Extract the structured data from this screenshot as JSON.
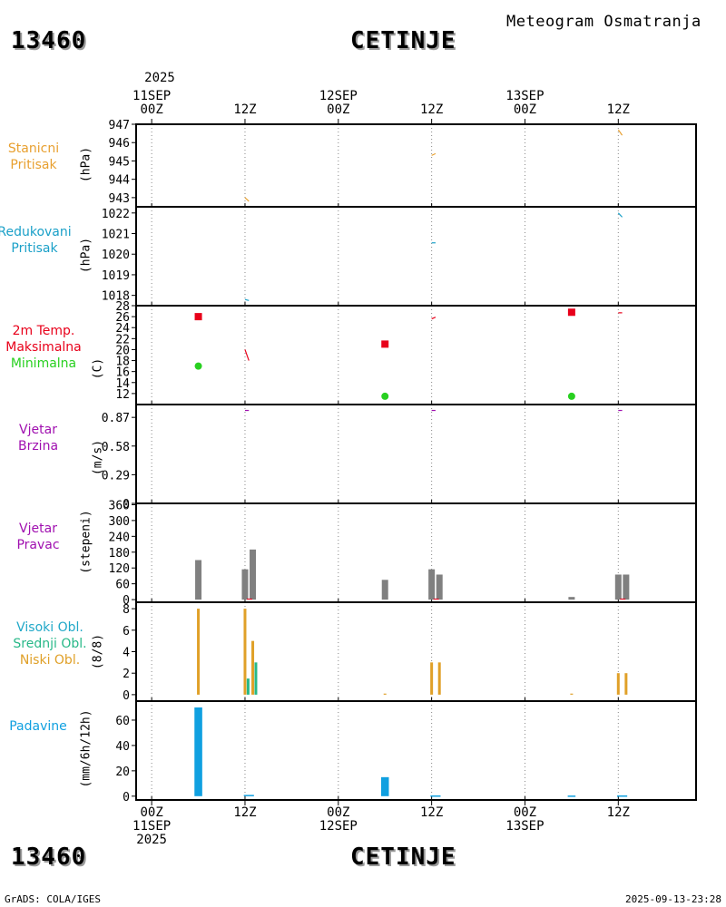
{
  "header": {
    "station_id": "13460",
    "station_name": "CETINJE",
    "chart_title": "Meteogram Osmatranja"
  },
  "footer": {
    "credit": "GrADS: COLA/IGES",
    "timestamp": "2025-09-13-23:28"
  },
  "colors": {
    "pressure_station": "#e8a030",
    "pressure_reduced": "#1aa0c8",
    "temp_max": "#e8001a",
    "temp_min": "#28d020",
    "wind": "#a010b0",
    "wind_dir_bar": "#808080",
    "cloud_high": "#20a8c8",
    "cloud_mid": "#28b888",
    "cloud_low": "#e0a028",
    "precip": "#10a0e0"
  },
  "time_axis": {
    "top": {
      "year": "2025",
      "ticks": [
        {
          "x": 0,
          "lines": [
            "11SEP",
            "00Z"
          ]
        },
        {
          "x": 12,
          "lines": [
            "12Z"
          ]
        },
        {
          "x": 24,
          "lines": [
            "12SEP",
            "00Z"
          ]
        },
        {
          "x": 36,
          "lines": [
            "12Z"
          ]
        },
        {
          "x": 48,
          "lines": [
            "13SEP",
            "00Z"
          ]
        },
        {
          "x": 60,
          "lines": [
            "12Z"
          ]
        }
      ]
    },
    "bottom": {
      "ticks": [
        {
          "x": 0,
          "lines": [
            "00Z",
            "11SEP",
            "2025"
          ]
        },
        {
          "x": 12,
          "lines": [
            "12Z"
          ]
        },
        {
          "x": 24,
          "lines": [
            "00Z",
            "12SEP"
          ]
        },
        {
          "x": 36,
          "lines": [
            "12Z"
          ]
        },
        {
          "x": 48,
          "lines": [
            "00Z",
            "13SEP"
          ]
        },
        {
          "x": 60,
          "lines": [
            "12Z"
          ]
        }
      ]
    }
  },
  "panel_labels": {
    "station_pressure": [
      "Stanicni",
      "Pritisak"
    ],
    "reduced_pressure": [
      "Redukovani",
      "Pritisak"
    ],
    "temperature": [
      "2m Temp.",
      "Maksimalna",
      "Minimalna"
    ],
    "wind_speed": [
      "Vjetar",
      "Brzina"
    ],
    "wind_direction": [
      "Vjetar",
      "Pravac"
    ],
    "clouds": [
      "Visoki Obl.",
      "Srednji Obl.",
      "Niski Obl."
    ],
    "precipitation": [
      "Padavine"
    ]
  },
  "chart_data": [
    {
      "id": "station_pressure",
      "type": "line",
      "ylabel": "(hPa)",
      "ylim": [
        942.5,
        947
      ],
      "yticks": [
        "943",
        "944",
        "945",
        "946",
        "947"
      ],
      "ytick_values": [
        943,
        944,
        945,
        946,
        947
      ],
      "segments": [
        {
          "x": [
            12,
            12.5
          ],
          "y": [
            943.0,
            942.8
          ]
        },
        {
          "x": [
            36,
            36.5
          ],
          "y": [
            945.3,
            945.4
          ]
        },
        {
          "x": [
            60,
            60.5
          ],
          "y": [
            946.7,
            946.4
          ]
        }
      ]
    },
    {
      "id": "reduced_pressure",
      "type": "line",
      "ylabel": "(hPa)",
      "ylim": [
        1017.5,
        1022.3
      ],
      "yticks": [
        "1018",
        "1019",
        "1020",
        "1021",
        "1022"
      ],
      "ytick_values": [
        1018,
        1019,
        1020,
        1021,
        1022
      ],
      "segments": [
        {
          "x": [
            12,
            12.5
          ],
          "y": [
            1017.8,
            1017.75
          ]
        },
        {
          "x": [
            36,
            36.5
          ],
          "y": [
            1020.55,
            1020.55
          ]
        },
        {
          "x": [
            60,
            60.5
          ],
          "y": [
            1022.0,
            1021.8
          ]
        }
      ]
    },
    {
      "id": "temperature",
      "type": "scatter",
      "ylabel": "(C)",
      "ylim": [
        10,
        28
      ],
      "yticks": [
        "12",
        "14",
        "16",
        "18",
        "20",
        "22",
        "24",
        "26",
        "28"
      ],
      "ytick_values": [
        12,
        14,
        16,
        18,
        20,
        22,
        24,
        26,
        28
      ],
      "max_points": [
        {
          "x": 6,
          "y": 26.0
        },
        {
          "x": 30,
          "y": 21.0
        },
        {
          "x": 54,
          "y": 26.8
        }
      ],
      "min_points": [
        {
          "x": 6,
          "y": 17.0
        },
        {
          "x": 30,
          "y": 11.5
        },
        {
          "x": 54,
          "y": 11.5
        }
      ],
      "segments": [
        {
          "x": [
            12,
            12.5
          ],
          "y": [
            20.0,
            18.0
          ]
        },
        {
          "x": [
            36,
            36.5
          ],
          "y": [
            25.6,
            25.9
          ]
        },
        {
          "x": [
            60,
            60.5
          ],
          "y": [
            26.7,
            26.7
          ]
        }
      ]
    },
    {
      "id": "wind_speed",
      "type": "line",
      "ylabel": "(m/s)",
      "ylim": [
        0,
        1.0
      ],
      "yticks": [
        "0",
        "0.29",
        "0.58",
        "0.87"
      ],
      "ytick_values": [
        0,
        0.29,
        0.58,
        0.87
      ],
      "segments": [
        {
          "x": [
            12,
            12.5
          ],
          "y": [
            0.94,
            0.94
          ]
        },
        {
          "x": [
            36,
            36.5
          ],
          "y": [
            0.94,
            0.94
          ]
        },
        {
          "x": [
            60,
            60.5
          ],
          "y": [
            0.94,
            0.94
          ]
        }
      ]
    },
    {
      "id": "wind_direction",
      "type": "bar",
      "ylabel": "(stepeni)",
      "ylim": [
        -10,
        365
      ],
      "yticks": [
        "0",
        "60",
        "120",
        "180",
        "240",
        "300",
        "360"
      ],
      "ytick_values": [
        0,
        60,
        120,
        180,
        240,
        300,
        360
      ],
      "bars": [
        {
          "x": 6,
          "value": 150
        },
        {
          "x": 12,
          "value": 115
        },
        {
          "x": 13,
          "value": 190
        },
        {
          "x": 30,
          "value": 75
        },
        {
          "x": 36,
          "value": 115
        },
        {
          "x": 37,
          "value": 95
        },
        {
          "x": 54,
          "value": 10
        },
        {
          "x": 60,
          "value": 95
        },
        {
          "x": 61,
          "value": 95
        }
      ]
    },
    {
      "id": "clouds",
      "type": "bar",
      "ylabel": "(8/8)",
      "ylim": [
        -0.6,
        8.6
      ],
      "yticks": [
        "0",
        "2",
        "4",
        "6",
        "8"
      ],
      "ytick_values": [
        0,
        2,
        4,
        6,
        8
      ],
      "series": [
        {
          "name": "Niski Obl.",
          "color_key": "cloud_low",
          "bars": [
            {
              "x": 6,
              "value": 8
            },
            {
              "x": 12,
              "value": 8
            },
            {
              "x": 13,
              "value": 5
            },
            {
              "x": 30,
              "value": 0.1
            },
            {
              "x": 36,
              "value": 3
            },
            {
              "x": 37,
              "value": 3
            },
            {
              "x": 54,
              "value": 0.1
            },
            {
              "x": 60,
              "value": 2
            },
            {
              "x": 61,
              "value": 2
            }
          ]
        },
        {
          "name": "Srednji Obl.",
          "color_key": "cloud_mid",
          "bars": [
            {
              "x": 12.4,
              "value": 1.5
            },
            {
              "x": 13.4,
              "value": 3
            }
          ]
        }
      ]
    },
    {
      "id": "precipitation",
      "type": "bar",
      "ylabel": "(mm/6h/12h)",
      "ylim": [
        -3,
        75
      ],
      "yticks": [
        "0",
        "20",
        "40",
        "60"
      ],
      "ytick_values": [
        0,
        20,
        40,
        60
      ],
      "bars": [
        {
          "x": 6,
          "value": 70,
          "width": 1
        },
        {
          "x": 12.5,
          "value": 1,
          "width": 1.3
        },
        {
          "x": 30,
          "value": 15,
          "width": 1
        },
        {
          "x": 36.5,
          "value": 0.6,
          "width": 1.3
        },
        {
          "x": 54,
          "value": 0.5,
          "width": 1
        },
        {
          "x": 60.5,
          "value": 0.6,
          "width": 1.3
        }
      ]
    }
  ]
}
